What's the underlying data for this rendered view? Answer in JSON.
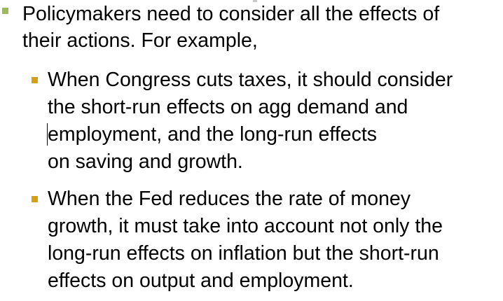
{
  "colors": {
    "level1_bullet": "#9bbb59",
    "level2_bullet": "#d4a017",
    "text": "#000000"
  },
  "main": {
    "lines": [
      "Policymakers need to consider all the effects of",
      "their actions.  For example,"
    ]
  },
  "sub": [
    {
      "lines": [
        "When Congress cuts taxes, it should consider",
        "the short-run effects on agg demand and",
        "employment, and the long-run effects",
        "on saving and growth."
      ]
    },
    {
      "lines": [
        "When the Fed reduces the rate of money",
        "growth, it must take into account not only the",
        "long-run effects on inflation but the short-run",
        "effects on output and employment."
      ]
    }
  ]
}
